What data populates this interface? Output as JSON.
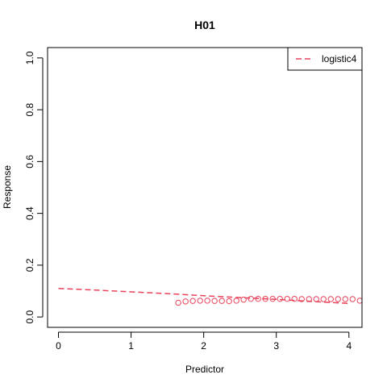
{
  "chart_data": {
    "type": "scatter",
    "title": "H01",
    "xlabel": "Predictor",
    "ylabel": "Response",
    "xlim": [
      -0.15,
      4.18
    ],
    "ylim": [
      -0.04,
      1.04
    ],
    "x_ticks": [
      0,
      1,
      2,
      3,
      4
    ],
    "x_tick_labels": [
      "0",
      "1",
      "2",
      "3",
      "4"
    ],
    "y_ticks": [
      0.0,
      0.2,
      0.4,
      0.6,
      0.8,
      1.0
    ],
    "y_tick_labels": [
      "0.0",
      "0.2",
      "0.4",
      "0.6",
      "0.8",
      "1.0"
    ],
    "grid": false,
    "legend_position": "top-right",
    "series": [
      {
        "name": "",
        "kind": "points",
        "color": "#e8435a",
        "x": [
          1.65,
          1.75,
          1.85,
          1.95,
          2.05,
          2.15,
          2.25,
          2.35,
          2.45,
          2.55,
          2.65,
          2.75,
          2.85,
          2.95,
          3.05,
          3.15,
          3.25,
          3.35,
          3.45,
          3.55,
          3.65,
          3.75,
          3.85,
          3.95,
          4.05,
          4.15
        ],
        "y": [
          0.055,
          0.06,
          0.062,
          0.063,
          0.063,
          0.062,
          0.062,
          0.061,
          0.063,
          0.067,
          0.07,
          0.07,
          0.07,
          0.07,
          0.07,
          0.07,
          0.07,
          0.069,
          0.069,
          0.069,
          0.069,
          0.069,
          0.069,
          0.069,
          0.069,
          0.063
        ]
      },
      {
        "name": "logistic4",
        "kind": "line",
        "color": "#e8435a",
        "dash": "dashed",
        "x": [
          0,
          0.5,
          1.0,
          1.5,
          2.0,
          2.5,
          3.0,
          3.5,
          4.0
        ],
        "y": [
          0.11,
          0.104,
          0.097,
          0.09,
          0.082,
          0.075,
          0.068,
          0.06,
          0.052
        ]
      }
    ]
  }
}
